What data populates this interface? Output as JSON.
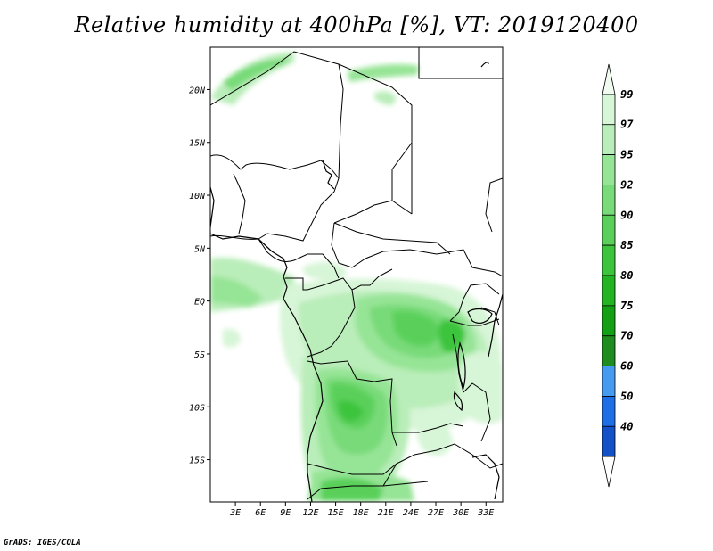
{
  "title": "Relative humidity at 400hPa [%], VT: 2019120400",
  "credit": "GrADS: IGES/COLA",
  "map": {
    "lon_range": [
      0,
      35
    ],
    "lat_range": [
      -19,
      24
    ],
    "lat_ticks": [
      {
        "value": 20,
        "label": "20N"
      },
      {
        "value": 15,
        "label": "15N"
      },
      {
        "value": 10,
        "label": "10N"
      },
      {
        "value": 5,
        "label": "5N"
      },
      {
        "value": 0,
        "label": "EQ"
      },
      {
        "value": -5,
        "label": "5S"
      },
      {
        "value": -10,
        "label": "10S"
      },
      {
        "value": -15,
        "label": "15S"
      }
    ],
    "lon_ticks": [
      {
        "value": 3,
        "label": "3E"
      },
      {
        "value": 6,
        "label": "6E"
      },
      {
        "value": 9,
        "label": "9E"
      },
      {
        "value": 12,
        "label": "12E"
      },
      {
        "value": 15,
        "label": "15E"
      },
      {
        "value": 18,
        "label": "18E"
      },
      {
        "value": 21,
        "label": "21E"
      },
      {
        "value": 24,
        "label": "24E"
      },
      {
        "value": 27,
        "label": "27E"
      },
      {
        "value": 30,
        "label": "30E"
      },
      {
        "value": 33,
        "label": "33E"
      }
    ]
  },
  "colorbar": {
    "levels": [
      "40",
      "50",
      "60",
      "70",
      "75",
      "80",
      "85",
      "90",
      "92",
      "95",
      "97",
      "99"
    ],
    "colors": [
      "#f0fcf0",
      "#d7f5d7",
      "#b9edb9",
      "#96e496",
      "#78da78",
      "#5ad05a",
      "#3cc43c",
      "#23b423",
      "#14a014",
      "#1e8c1e",
      "#469bf0",
      "#1e6ee6",
      "#1450c8",
      "#ffffff"
    ]
  }
}
